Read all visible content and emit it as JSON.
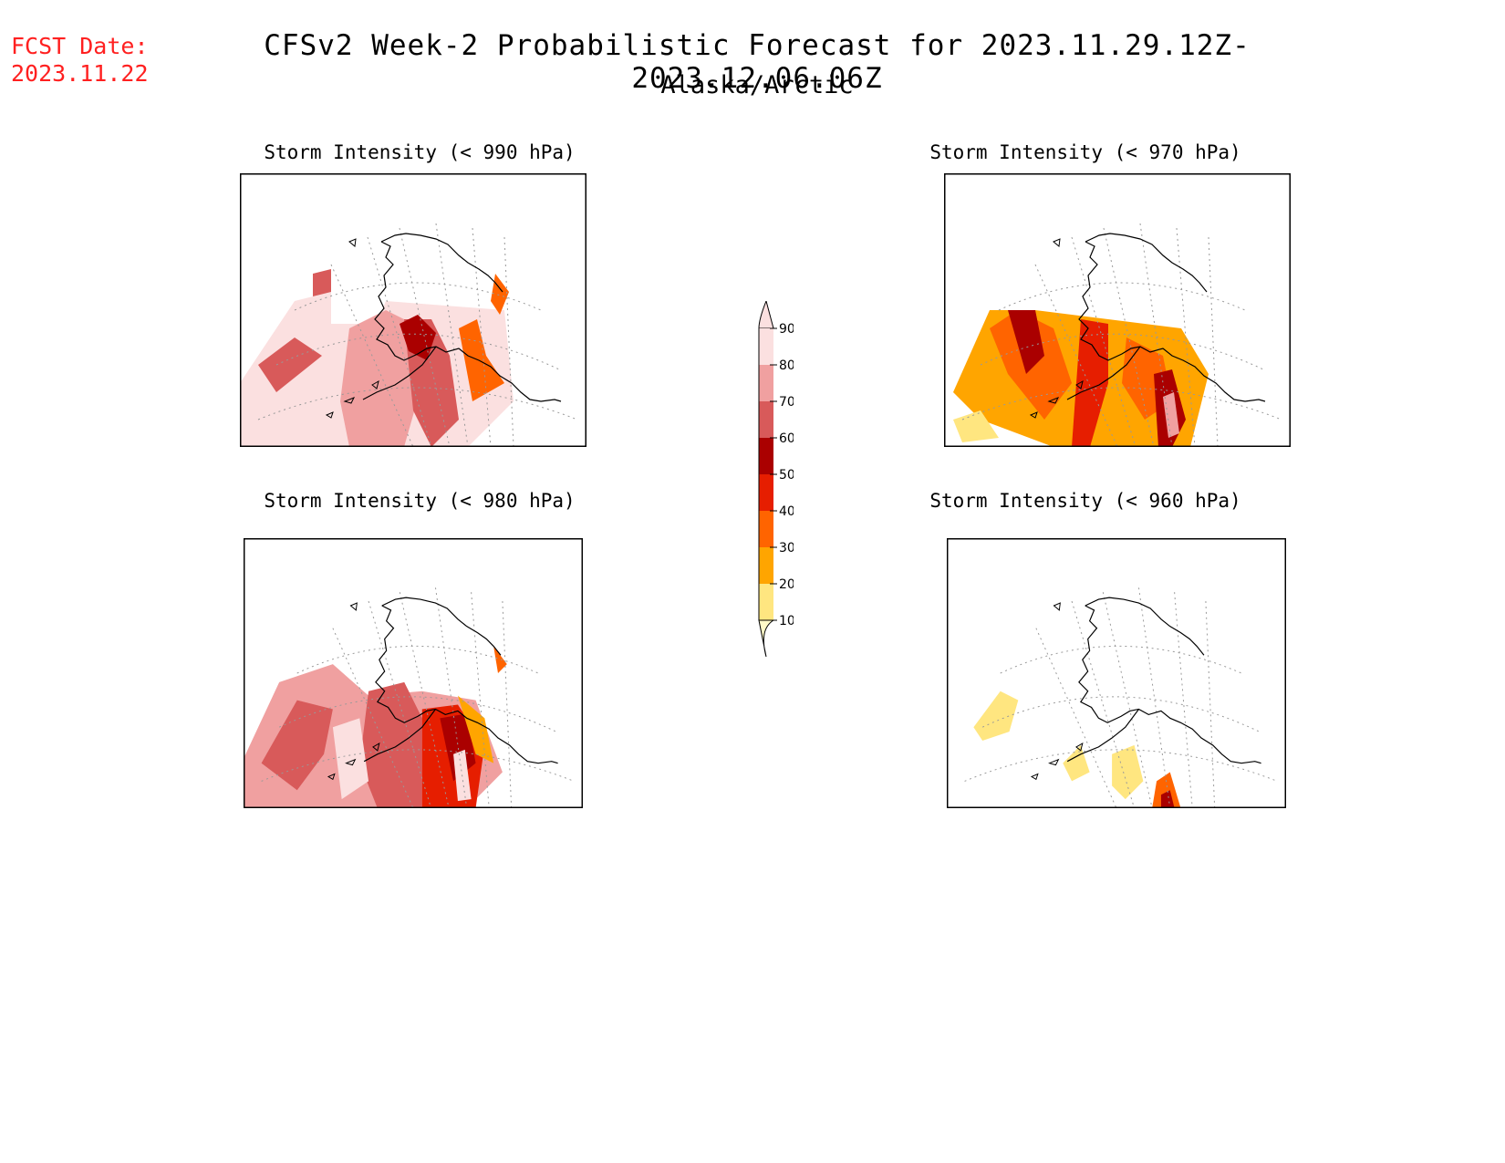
{
  "header": {
    "fcst_label": "FCST Date:",
    "fcst_date": "2023.11.22",
    "title": "CFSv2 Week-2 Probabilistic Forecast for 2023.11.29.12Z-2023.12.06.06Z",
    "subtitle": "Alaska/Arctic"
  },
  "panels": [
    {
      "title": "Storm Intensity (< 990 hPa)"
    },
    {
      "title": "Storm Intensity (< 970 hPa)"
    },
    {
      "title": "Storm Intensity (< 980 hPa)"
    },
    {
      "title": "Storm Intensity (< 960 hPa)"
    }
  ],
  "legend": {
    "levels": [
      "10",
      "20",
      "30",
      "40",
      "50",
      "60",
      "70",
      "80",
      "90"
    ],
    "colors": [
      "#fffac8",
      "#ffe680",
      "#ffa500",
      "#ff6400",
      "#e61e00",
      "#aa0000",
      "#d85a5a",
      "#f0a0a0",
      "#fbe0e0"
    ]
  }
}
